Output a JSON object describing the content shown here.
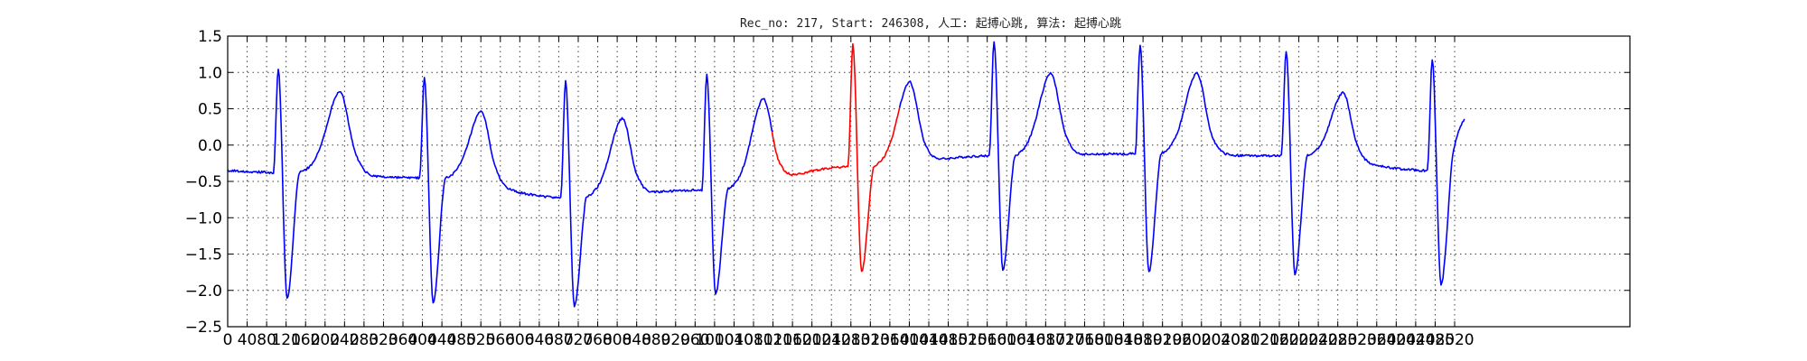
{
  "chart_data": {
    "type": "line",
    "title": "Rec_no: 217, Start: 246308, 人工: 起搏心跳, 算法: 起搏心跳",
    "xlabel": "",
    "ylabel": "",
    "xlim": [
      0,
      2880
    ],
    "ylim": [
      -2.5,
      1.5
    ],
    "yticks": [
      -2.5,
      -2.0,
      -1.5,
      -1.0,
      -0.5,
      0.0,
      0.5,
      1.0,
      1.5
    ],
    "ytick_labels": [
      "−2.5",
      "−2.0",
      "−1.5",
      "−1.0",
      "−0.5",
      "0.0",
      "0.5",
      "1.0",
      "1.5"
    ],
    "xticks": [
      0,
      40,
      80,
      120,
      160,
      200,
      240,
      280,
      320,
      360,
      400,
      440,
      480,
      520,
      560,
      600,
      640,
      680,
      720,
      760,
      800,
      840,
      880,
      920,
      960,
      1000,
      1040,
      1080,
      1120,
      1160,
      1200,
      1240,
      1280,
      1320,
      1360,
      1400,
      1440,
      1480,
      1520,
      1560,
      1600,
      1640,
      1680,
      1720,
      1760,
      1800,
      1840,
      1880,
      1920,
      1960,
      2000,
      2040,
      2080,
      2120,
      2160,
      2200,
      2240,
      2280,
      2320,
      2360,
      2400,
      2440,
      2480,
      2520
    ],
    "grid": true,
    "legend": "none",
    "series_colors": {
      "primary": "#0000ff",
      "highlight": "#ff0000"
    },
    "highlight_range": [
      1120,
      1380
    ],
    "beats": [
      {
        "qrs": 100,
        "base_before": -0.38,
        "r": 1.05,
        "s": -2.12,
        "t": 0.75,
        "t_x": 230,
        "base_after": -0.4
      },
      {
        "qrs": 400,
        "base_before": -0.45,
        "r": 0.92,
        "s": -2.18,
        "t": 0.47,
        "t_x": 520,
        "base_after": -0.72
      },
      {
        "qrs": 690,
        "base_before": -0.72,
        "r": 0.88,
        "s": -2.22,
        "t": 0.38,
        "t_x": 810,
        "base_after": -0.62
      },
      {
        "qrs": 980,
        "base_before": -0.62,
        "r": 0.98,
        "s": -2.05,
        "t": 0.65,
        "t_x": 1100,
        "base_after": -0.3
      },
      {
        "qrs": 1280,
        "base_before": -0.3,
        "r": 1.38,
        "s": -1.75,
        "t": 0.88,
        "t_x": 1400,
        "base_after": -0.13
      },
      {
        "qrs": 1570,
        "base_before": -0.15,
        "r": 1.42,
        "s": -1.72,
        "t": 1.0,
        "t_x": 1690,
        "base_after": -0.12
      },
      {
        "qrs": 1870,
        "base_before": -0.12,
        "r": 1.38,
        "s": -1.75,
        "t": 1.0,
        "t_x": 1990,
        "base_after": -0.15
      },
      {
        "qrs": 2170,
        "base_before": -0.15,
        "r": 1.3,
        "s": -1.78,
        "t": 0.73,
        "t_x": 2290,
        "base_after": -0.35
      },
      {
        "qrs": 2470,
        "base_before": -0.35,
        "r": 1.18,
        "s": -1.92,
        "t": 0.4,
        "t_x": 2540,
        "base_after": 0.4
      }
    ],
    "x_end": 2540,
    "y_start": -0.35
  }
}
